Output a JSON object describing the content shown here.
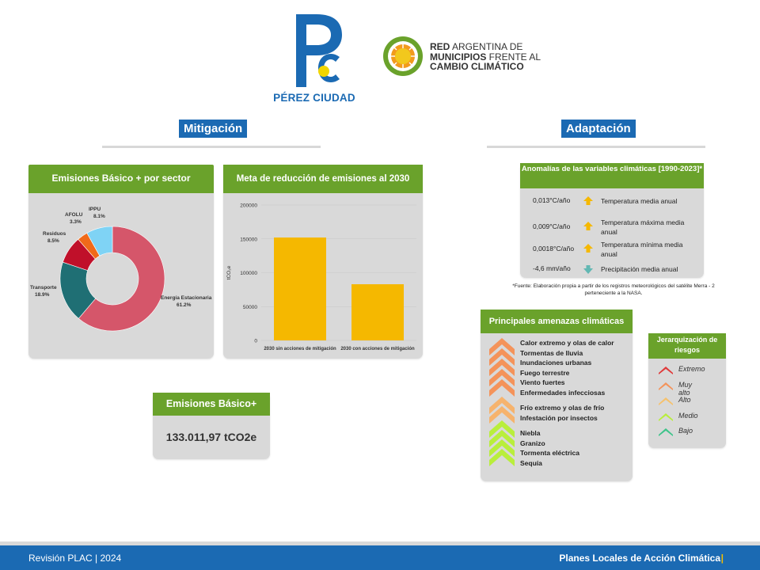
{
  "header": {
    "pc_logo_letters": "Pc",
    "pc_name": "PÉREZ CIUDAD",
    "red_line1_bold": "RED",
    "red_line1_rest": " ARGENTINA DE",
    "red_line2_bold": "MUNICIPIOS",
    "red_line2_rest": " FRENTE AL",
    "red_line3_bold": "CAMBIO CLIMÁTICO"
  },
  "sections": {
    "mitigacion": "Mitigación",
    "adaptacion": "Adaptación"
  },
  "donut_card": {
    "title": "Emisiones Básico + por sector"
  },
  "bar_card": {
    "title": "Meta de reducción de emisiones al 2030"
  },
  "emisiones_total": {
    "title": "Emisiones Básico+",
    "value": "133.011,97 tCO2e"
  },
  "chart_data": [
    {
      "type": "pie",
      "title": "Emisiones Básico + por sector",
      "donut": true,
      "slices": [
        {
          "name": "Energía Estacionaria",
          "label": "61.2%",
          "value": 61.2,
          "color": "#d5566a"
        },
        {
          "name": "Transporte",
          "label": "18.9%",
          "value": 18.9,
          "color": "#1f6f74"
        },
        {
          "name": "Residuos",
          "label": "8.5%",
          "value": 8.5,
          "color": "#c0102a"
        },
        {
          "name": "AFOLU",
          "label": "3.3%",
          "value": 3.3,
          "color": "#f06a1a"
        },
        {
          "name": "IPPU",
          "label": "8.1%",
          "value": 8.1,
          "color": "#7fd3f5"
        }
      ]
    },
    {
      "type": "bar",
      "title": "Meta de reducción de emisiones al 2030",
      "categories": [
        "2030 sin acciones de mitigación",
        "2030 con acciones de mitigación"
      ],
      "values": [
        152000,
        83000
      ],
      "ylabel": "tCO₂e",
      "ylim": [
        0,
        200000
      ],
      "yticks": [
        "0",
        "50000",
        "100000",
        "150000",
        "200000"
      ],
      "color": "#f5b800",
      "grid": true
    }
  ],
  "anomalias": {
    "title": "Anomalías de las variables climáticas [1990-2023]*",
    "rows": [
      {
        "value": "0,013°C/año",
        "label": "Temperatura media anual",
        "icon": "up-arrow-icon",
        "color": "#f5b800"
      },
      {
        "value": "0,009°C/año",
        "label": "Temperatura máxima media anual",
        "icon": "up-arrow-icon",
        "color": "#f5b800"
      },
      {
        "value": "0,0018°C/año",
        "label": "Temperatura mínima media anual",
        "icon": "up-arrow-icon",
        "color": "#f5b800"
      },
      {
        "value": "-4,6 mm/año",
        "label": "Precipitación media anual",
        "icon": "down-arrow-icon",
        "color": "#62b8b3"
      }
    ],
    "footnote": "*Fuente: Elaboración propia a partir de los registros meteorológicos del satélite Merra - 2 perteneciente a la NASA."
  },
  "amenazas": {
    "title": "Principales amenazas climáticas",
    "group1": [
      "Calor extremo y olas de calor",
      "Tormentas de lluvia",
      "Inundaciones urbanas",
      "Fuego terrestre",
      "Viento fuertes",
      "Enfermedades infecciosas"
    ],
    "group2": [
      "Frío extremo y olas de frío",
      "Infestación por insectos"
    ],
    "group3": [
      "Niebla",
      "Granizo",
      "Tormenta eléctrica",
      "Sequía"
    ],
    "colors": {
      "muy_alto": "#f4935a",
      "alto": "#f6b36d",
      "medio": "#b9ee3c"
    }
  },
  "jerarquizacion": {
    "title": "Jerarquización de riesgos",
    "items": [
      {
        "label": "Extremo",
        "color": "#e03a3a"
      },
      {
        "label": "Muy alto",
        "color": "#f4935a"
      },
      {
        "label": "Alto",
        "color": "#f6c26d"
      },
      {
        "label": "Medio",
        "color": "#b9ee3c"
      },
      {
        "label": "Bajo",
        "color": "#3ec48a"
      }
    ]
  },
  "footer": {
    "left": "Revisión PLAC | 2024",
    "right": "Planes Locales de Acción Climática",
    "right_bar": "|"
  }
}
